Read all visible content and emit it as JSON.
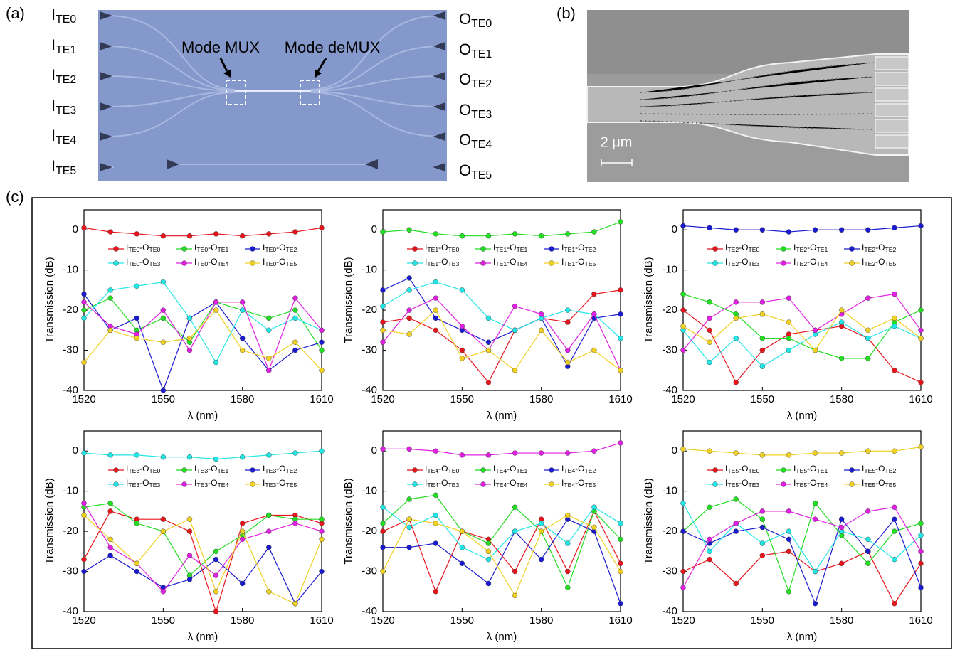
{
  "panels": {
    "a": {
      "label": "(a)",
      "inputs": [
        "ITE0",
        "ITE1",
        "ITE2",
        "ITE3",
        "ITE4",
        "ITE5"
      ],
      "outputs": [
        "OTE0",
        "OTE1",
        "OTE2",
        "OTE3",
        "OTE4",
        "OTE5"
      ],
      "mux": "Mode MUX",
      "demux": "Mode deMUX"
    },
    "b": {
      "label": "(b)",
      "scale": "2 μm"
    },
    "c": {
      "label": "(c)"
    }
  },
  "chart_data": [
    {
      "type": "line",
      "x_label": "λ (nm)",
      "y_label": "Transmission (dB)",
      "xlim": [
        1520,
        1610
      ],
      "xticks": [
        1520,
        1550,
        1580,
        1610
      ],
      "ylim": [
        -40,
        5
      ],
      "yticks": [
        0,
        -10,
        -20,
        -30,
        -40
      ],
      "x": [
        1520,
        1530,
        1540,
        1550,
        1560,
        1570,
        1580,
        1590,
        1600,
        1610
      ],
      "series": [
        {
          "name": "ITE0-OTE0",
          "color": "#e8141c",
          "values": [
            0.5,
            -0.5,
            -1,
            -1.5,
            -1.5,
            -1,
            -1.5,
            -1,
            -0.5,
            0.5
          ]
        },
        {
          "name": "ITE0-OTE1",
          "color": "#22dd22",
          "values": [
            -20,
            -17,
            -25,
            -22,
            -28,
            -18,
            -20,
            -22,
            -20,
            -30
          ]
        },
        {
          "name": "ITE0-OTE2",
          "color": "#1a1ad0",
          "values": [
            -16,
            -25,
            -22,
            -40,
            -22,
            -18,
            -27,
            -35,
            -30,
            -28
          ]
        },
        {
          "name": "ITE0-OTE3",
          "color": "#22e6e6",
          "values": [
            -22,
            -15,
            -14,
            -13,
            -22,
            -33,
            -20,
            -25,
            -22,
            -25
          ]
        },
        {
          "name": "ITE0-OTE4",
          "color": "#e020e0",
          "values": [
            -18,
            -24,
            -26,
            -20,
            -30,
            -18,
            -18,
            -35,
            -17,
            -25
          ]
        },
        {
          "name": "ITE0-OTE5",
          "color": "#f0d020",
          "values": [
            -33,
            -25,
            -27,
            -28,
            -27,
            -20,
            -30,
            -32,
            -28,
            -35
          ]
        }
      ]
    },
    {
      "type": "line",
      "x_label": "λ (nm)",
      "y_label": "Transmission (dB)",
      "xlim": [
        1520,
        1610
      ],
      "xticks": [
        1520,
        1550,
        1580,
        1610
      ],
      "ylim": [
        -40,
        5
      ],
      "yticks": [
        0,
        -10,
        -20,
        -30,
        -40
      ],
      "x": [
        1520,
        1530,
        1540,
        1550,
        1560,
        1570,
        1580,
        1590,
        1600,
        1610
      ],
      "series": [
        {
          "name": "ITE1-OTE0",
          "color": "#e8141c",
          "values": [
            -23,
            -22,
            -25,
            -30,
            -38,
            -25,
            -22,
            -23,
            -16,
            -15
          ]
        },
        {
          "name": "ITE1-OTE1",
          "color": "#22dd22",
          "values": [
            -0.5,
            0,
            -1,
            -1.5,
            -1.5,
            -1,
            -1.5,
            -1,
            -0.5,
            2
          ]
        },
        {
          "name": "ITE1-OTE2",
          "color": "#1a1ad0",
          "values": [
            -15,
            -12,
            -22,
            -25,
            -28,
            -25,
            -22,
            -34,
            -22,
            -21
          ]
        },
        {
          "name": "ITE1-OTE3",
          "color": "#22e6e6",
          "values": [
            -19,
            -15,
            -13,
            -15,
            -22,
            -25,
            -22,
            -20,
            -21,
            -27
          ]
        },
        {
          "name": "ITE1-OTE4",
          "color": "#e020e0",
          "values": [
            -28,
            -20,
            -17,
            -24,
            -30,
            -19,
            -21,
            -30,
            -21,
            -35
          ]
        },
        {
          "name": "ITE1-OTE5",
          "color": "#f0d020",
          "values": [
            -25,
            -26,
            -20,
            -32,
            -30,
            -35,
            -25,
            -33,
            -30,
            -35
          ]
        }
      ]
    },
    {
      "type": "line",
      "x_label": "λ (nm)",
      "y_label": "Transmission (dB)",
      "xlim": [
        1520,
        1610
      ],
      "xticks": [
        1520,
        1550,
        1580,
        1610
      ],
      "ylim": [
        -40,
        5
      ],
      "yticks": [
        0,
        -10,
        -20,
        -30,
        -40
      ],
      "x": [
        1520,
        1530,
        1540,
        1550,
        1560,
        1570,
        1580,
        1590,
        1600,
        1610
      ],
      "series": [
        {
          "name": "ITE2-OTE0",
          "color": "#e8141c",
          "values": [
            -20,
            -25,
            -38,
            -30,
            -26,
            -25,
            -24,
            -27,
            -35,
            -38
          ]
        },
        {
          "name": "ITE2-OTE1",
          "color": "#22dd22",
          "values": [
            -16,
            -18,
            -21,
            -27,
            -27,
            -30,
            -32,
            -32,
            -23,
            -20
          ]
        },
        {
          "name": "ITE2-OTE2",
          "color": "#1a1ad0",
          "values": [
            1,
            0.5,
            0,
            0,
            -0.5,
            0,
            0,
            0,
            0.5,
            1
          ]
        },
        {
          "name": "ITE2-OTE3",
          "color": "#22e6e6",
          "values": [
            -25,
            -33,
            -27,
            -34,
            -30,
            -26,
            -23,
            -27,
            -24,
            -27
          ]
        },
        {
          "name": "ITE2-OTE4",
          "color": "#e020e0",
          "values": [
            -30,
            -22,
            -18,
            -18,
            -17,
            -25,
            -21,
            -17,
            -16,
            -25
          ]
        },
        {
          "name": "ITE2-OTE5",
          "color": "#f0d020",
          "values": [
            -24,
            -28,
            -22,
            -21,
            -23,
            -30,
            -20,
            -25,
            -22,
            -27
          ]
        }
      ]
    },
    {
      "type": "line",
      "x_label": "λ (nm)",
      "y_label": "Transmission (dB)",
      "xlim": [
        1520,
        1610
      ],
      "xticks": [
        1520,
        1550,
        1580,
        1610
      ],
      "ylim": [
        -40,
        5
      ],
      "yticks": [
        0,
        -10,
        -20,
        -30,
        -40
      ],
      "x": [
        1520,
        1530,
        1540,
        1550,
        1560,
        1570,
        1580,
        1590,
        1600,
        1610
      ],
      "series": [
        {
          "name": "ITE3-OTE0",
          "color": "#e8141c",
          "values": [
            -27,
            -15,
            -17,
            -17,
            -20,
            -40,
            -18,
            -16,
            -16,
            -18
          ]
        },
        {
          "name": "ITE3-OTE1",
          "color": "#22dd22",
          "values": [
            -14,
            -13,
            -18,
            -20,
            -31,
            -25,
            -21,
            -16,
            -17,
            -17
          ]
        },
        {
          "name": "ITE3-OTE2",
          "color": "#1a1ad0",
          "values": [
            -30,
            -26,
            -30,
            -34,
            -32,
            -27,
            -33,
            -24,
            -38,
            -30
          ]
        },
        {
          "name": "ITE3-OTE3",
          "color": "#22e6e6",
          "values": [
            -0.5,
            -1,
            -1,
            -1.5,
            -1.5,
            -2,
            -1.5,
            -1,
            -0.5,
            0
          ]
        },
        {
          "name": "ITE3-OTE4",
          "color": "#e020e0",
          "values": [
            -13,
            -24,
            -28,
            -35,
            -26,
            -31,
            -22,
            -20,
            -18,
            -20
          ]
        },
        {
          "name": "ITE3-OTE5",
          "color": "#f0d020",
          "values": [
            -16,
            -22,
            -28,
            -20,
            -17,
            -35,
            -20,
            -35,
            -38,
            -22
          ]
        }
      ]
    },
    {
      "type": "line",
      "x_label": "λ (nm)",
      "y_label": "Transmission (dB)",
      "xlim": [
        1520,
        1610
      ],
      "xticks": [
        1520,
        1550,
        1580,
        1610
      ],
      "ylim": [
        -40,
        5
      ],
      "yticks": [
        0,
        -10,
        -20,
        -30,
        -40
      ],
      "x": [
        1520,
        1530,
        1540,
        1550,
        1560,
        1570,
        1580,
        1590,
        1600,
        1610
      ],
      "series": [
        {
          "name": "ITE4-OTE0",
          "color": "#e8141c",
          "values": [
            -20,
            -17,
            -35,
            -20,
            -22,
            -30,
            -17,
            -30,
            -15,
            -28
          ]
        },
        {
          "name": "ITE4-OTE1",
          "color": "#22dd22",
          "values": [
            -18,
            -12,
            -11,
            -20,
            -23,
            -14,
            -20,
            -34,
            -15,
            -22
          ]
        },
        {
          "name": "ITE4-OTE2",
          "color": "#1a1ad0",
          "values": [
            -24,
            -24,
            -23,
            -28,
            -33,
            -20,
            -27,
            -17,
            -20,
            -38
          ]
        },
        {
          "name": "ITE4-OTE3",
          "color": "#22e6e6",
          "values": [
            -14,
            -19,
            -16,
            -24,
            -27,
            -20,
            -18,
            -23,
            -14,
            -18
          ]
        },
        {
          "name": "ITE4-OTE4",
          "color": "#e020e0",
          "values": [
            0.5,
            0.5,
            0,
            -1,
            -1,
            -0.5,
            -0.5,
            -0.5,
            0,
            2
          ]
        },
        {
          "name": "ITE4-OTE5",
          "color": "#f0d020",
          "values": [
            -30,
            -17,
            -18,
            -20,
            -25,
            -36,
            -20,
            -16,
            -19,
            -30
          ]
        }
      ]
    },
    {
      "type": "line",
      "x_label": "λ (nm)",
      "y_label": "Transmission (dB)",
      "xlim": [
        1520,
        1610
      ],
      "xticks": [
        1520,
        1550,
        1580,
        1610
      ],
      "ylim": [
        -40,
        5
      ],
      "yticks": [
        0,
        -10,
        -20,
        -30,
        -40
      ],
      "x": [
        1520,
        1530,
        1540,
        1550,
        1560,
        1570,
        1580,
        1590,
        1600,
        1610
      ],
      "series": [
        {
          "name": "ITE5-OTE0",
          "color": "#e8141c",
          "values": [
            -30,
            -27,
            -33,
            -26,
            -25,
            -30,
            -28,
            -25,
            -38,
            -28
          ]
        },
        {
          "name": "ITE5-OTE1",
          "color": "#22dd22",
          "values": [
            -20,
            -14,
            -12,
            -17,
            -35,
            -13,
            -21,
            -28,
            -20,
            -18
          ]
        },
        {
          "name": "ITE5-OTE2",
          "color": "#1a1ad0",
          "values": [
            -20,
            -23,
            -20,
            -19,
            -22,
            -38,
            -17,
            -25,
            -17,
            -34
          ]
        },
        {
          "name": "ITE5-OTE3",
          "color": "#22e6e6",
          "values": [
            -13,
            -25,
            -18,
            -23,
            -20,
            -30,
            -20,
            -22,
            -27,
            -21
          ]
        },
        {
          "name": "ITE5-OTE4",
          "color": "#e020e0",
          "values": [
            -34,
            -22,
            -18,
            -15,
            -15,
            -17,
            -19,
            -15,
            -14,
            -25
          ]
        },
        {
          "name": "ITE5-OTE5",
          "color": "#f0d020",
          "values": [
            0.5,
            0,
            -0.5,
            -1,
            -1,
            -0.5,
            -0.5,
            0,
            0,
            1
          ]
        }
      ]
    }
  ]
}
